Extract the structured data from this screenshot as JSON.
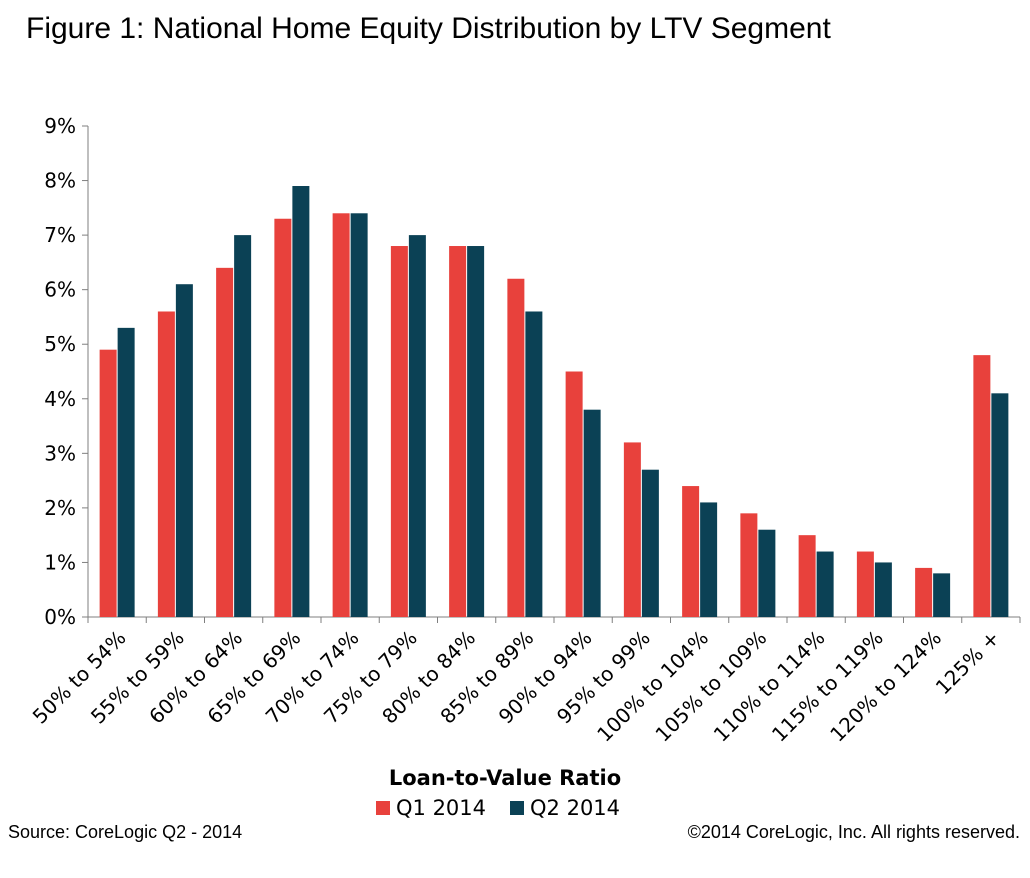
{
  "chart_data": {
    "type": "bar",
    "title": "Figure 1: National Home Equity Distribution by LTV Segment",
    "xlabel": "Loan-to-Value Ratio",
    "ylabel": "",
    "ylim": [
      0,
      9
    ],
    "yticks": [
      "0%",
      "1%",
      "2%",
      "3%",
      "4%",
      "5%",
      "6%",
      "7%",
      "8%",
      "9%"
    ],
    "grid": false,
    "legend_position": "bottom",
    "categories": [
      "50% to 54%",
      "55% to 59%",
      "60% to 64%",
      "65% to 69%",
      "70% to 74%",
      "75% to 79%",
      "80% to 84%",
      "85% to 89%",
      "90% to 94%",
      "95% to 99%",
      "100% to 104%",
      "105% to 109%",
      "110% to 114%",
      "115% to 119%",
      "120% to 124%",
      "125% +"
    ],
    "series": [
      {
        "name": "Q1 2014",
        "color": "#e8413c",
        "values": [
          4.9,
          5.6,
          6.4,
          7.3,
          7.4,
          6.8,
          6.8,
          6.2,
          4.5,
          3.2,
          2.4,
          1.9,
          1.5,
          1.2,
          0.9,
          4.8
        ]
      },
      {
        "name": "Q2 2014",
        "color": "#0b4155",
        "values": [
          5.3,
          6.1,
          7.0,
          7.9,
          7.4,
          7.0,
          6.8,
          5.6,
          3.8,
          2.7,
          2.1,
          1.6,
          1.2,
          1.0,
          0.8,
          4.1
        ]
      }
    ]
  },
  "footer": {
    "source": "Source: CoreLogic Q2 - 2014",
    "copyright": "©2014 CoreLogic, Inc. All rights reserved."
  }
}
